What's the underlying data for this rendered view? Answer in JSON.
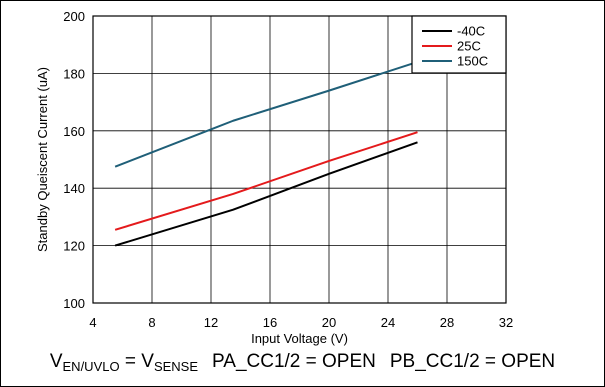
{
  "chart_data": {
    "type": "line",
    "title": "",
    "xlabel": "Input Voltage (V)",
    "ylabel": "Standby Queiscent Current (uA)",
    "xlim": [
      4,
      32
    ],
    "ylim": [
      100,
      200
    ],
    "xticks": [
      4,
      8,
      12,
      16,
      20,
      24,
      28,
      32
    ],
    "yticks": [
      100,
      120,
      140,
      160,
      180,
      200
    ],
    "grid": true,
    "legend_position": "top-right",
    "series": [
      {
        "name": "-40C",
        "color": "#000000",
        "x": [
          5.5,
          13.5,
          20,
          26
        ],
        "y": [
          120,
          132.5,
          145,
          156
        ]
      },
      {
        "name": "25C",
        "color": "#e41a1c",
        "x": [
          5.5,
          13.5,
          20,
          26
        ],
        "y": [
          125.5,
          138,
          149.5,
          159.5
        ]
      },
      {
        "name": "150C",
        "color": "#1f5f78",
        "x": [
          5.5,
          13.5,
          20,
          26
        ],
        "y": [
          147.5,
          163.5,
          174,
          184
        ]
      }
    ]
  },
  "condition": {
    "v1_main": "V",
    "v1_sub": "EN/UVLO",
    "equals": " = ",
    "v2_main": "V",
    "v2_sub": "SENSE",
    "pa": "PA_CC1/2 = OPEN",
    "pb": "PB_CC1/2 = OPEN"
  }
}
